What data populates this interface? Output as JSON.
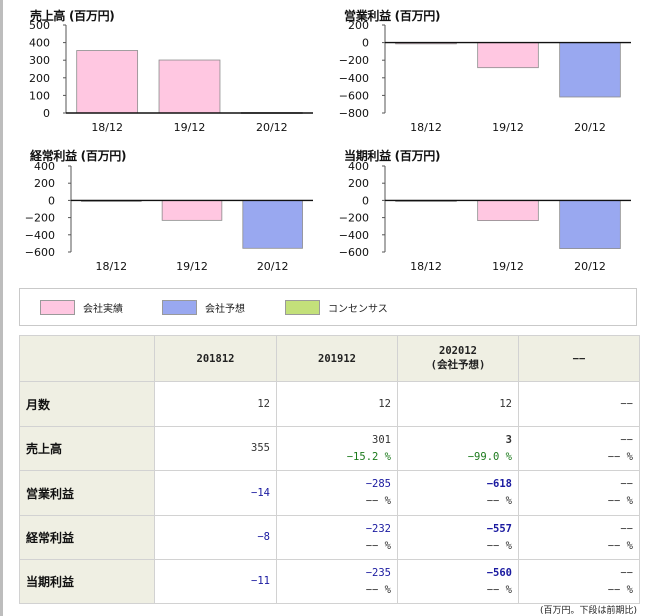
{
  "chart_data": [
    {
      "type": "bar",
      "title": "売上高 (百万円)",
      "categories": [
        "18/12",
        "19/12",
        "20/12"
      ],
      "series": [
        {
          "name": "会社実績",
          "values": [
            355,
            301,
            3
          ],
          "colors": [
            "#ffc7e1",
            "#ffc7e1",
            "#ffc7e1"
          ]
        }
      ],
      "ylim": [
        0,
        500
      ],
      "yticks": [
        "500",
        "400",
        "300",
        "200",
        "100",
        "0"
      ],
      "ytick_values": [
        500,
        400,
        300,
        200,
        100,
        0
      ]
    },
    {
      "type": "bar",
      "title": "営業利益 (百万円)",
      "categories": [
        "18/12",
        "19/12",
        "20/12"
      ],
      "series": [
        {
          "name": "会社実績 / 会社予想",
          "values": [
            -14,
            -285,
            -618
          ],
          "colors": [
            "#ffc7e1",
            "#ffc7e1",
            "#99a8f0"
          ]
        }
      ],
      "ylim": [
        -800,
        200
      ],
      "yticks": [
        "200",
        "0",
        "−200",
        "−400",
        "−600",
        "−800"
      ],
      "ytick_values": [
        200,
        0,
        -200,
        -400,
        -600,
        -800
      ]
    },
    {
      "type": "bar",
      "title": "経常利益 (百万円)",
      "categories": [
        "18/12",
        "19/12",
        "20/12"
      ],
      "series": [
        {
          "name": "会社実績 / 会社予想",
          "values": [
            -8,
            -232,
            -557
          ],
          "colors": [
            "#ffc7e1",
            "#ffc7e1",
            "#99a8f0"
          ]
        }
      ],
      "ylim": [
        -600,
        400
      ],
      "yticks": [
        "400",
        "200",
        "0",
        "−200",
        "−400",
        "−600"
      ],
      "ytick_values": [
        400,
        200,
        0,
        -200,
        -400,
        -600
      ]
    },
    {
      "type": "bar",
      "title": "当期利益 (百万円)",
      "categories": [
        "18/12",
        "19/12",
        "20/12"
      ],
      "series": [
        {
          "name": "会社実績 / 会社予想",
          "values": [
            -11,
            -235,
            -560
          ],
          "colors": [
            "#ffc7e1",
            "#ffc7e1",
            "#99a8f0"
          ]
        }
      ],
      "ylim": [
        -600,
        400
      ],
      "yticks": [
        "400",
        "200",
        "0",
        "−200",
        "−400",
        "−600"
      ],
      "ytick_values": [
        400,
        200,
        0,
        -200,
        -400,
        -600
      ]
    }
  ],
  "legend": [
    {
      "label": "会社実績",
      "color": "#ffc7e1"
    },
    {
      "label": "会社予想",
      "color": "#99a8f0"
    },
    {
      "label": "コンセンサス",
      "color": "#c3e07a"
    }
  ],
  "table": {
    "headers": [
      "201812",
      "201912",
      "202012",
      "(会社予想)",
      "−−"
    ],
    "rows": [
      {
        "label": "月数",
        "cells": [
          [
            "12"
          ],
          [
            "12"
          ],
          [
            "12"
          ],
          [
            "−−"
          ]
        ]
      },
      {
        "label": "売上高",
        "cells": [
          [
            "355"
          ],
          [
            "301",
            "−15.2 %"
          ],
          [
            "3",
            "−99.0 %"
          ],
          [
            "−−",
            "−− %"
          ]
        ]
      },
      {
        "label": "営業利益",
        "cells": [
          [
            "−14"
          ],
          [
            "−285",
            "−− %"
          ],
          [
            "−618",
            "−− %"
          ],
          [
            "−−",
            "−− %"
          ]
        ]
      },
      {
        "label": "経常利益",
        "cells": [
          [
            "−8"
          ],
          [
            "−232",
            "−− %"
          ],
          [
            "−557",
            "−− %"
          ],
          [
            "−−",
            "−− %"
          ]
        ]
      },
      {
        "label": "当期利益",
        "cells": [
          [
            "−11"
          ],
          [
            "−235",
            "−− %"
          ],
          [
            "−560",
            "−− %"
          ],
          [
            "−−",
            "−− %"
          ]
        ]
      }
    ]
  },
  "footnote": "(百万円。下段は前期比)"
}
